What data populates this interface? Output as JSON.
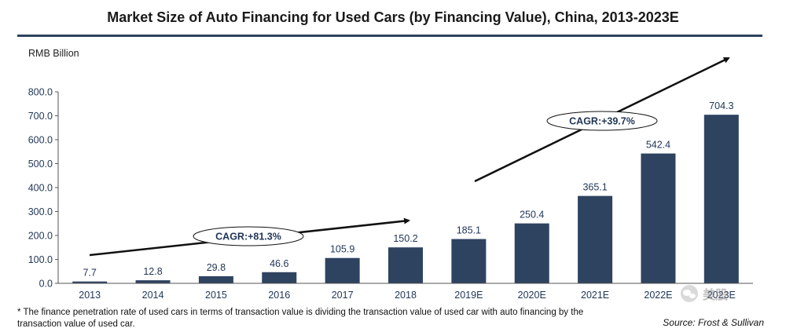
{
  "header": {
    "title": "Market Size of Auto Financing for Used Cars (by Financing Value), China, 2013-2023E",
    "unit": "RMB Billion"
  },
  "colors": {
    "bar": "#2e4360",
    "axis_text": "#1f3557",
    "rule": "#2e4360"
  },
  "chart_data": {
    "type": "bar",
    "title": "Market Size of Auto Financing for Used Cars (by Financing Value), China, 2013-2023E",
    "ylabel": "RMB Billion",
    "xlabel": "",
    "ylim": [
      0,
      800
    ],
    "yticks": [
      "0.0",
      "100.0",
      "200.0",
      "300.0",
      "400.0",
      "500.0",
      "600.0",
      "700.0",
      "800.0"
    ],
    "categories": [
      "2013",
      "2014",
      "2015",
      "2016",
      "2017",
      "2018",
      "2019E",
      "2020E",
      "2021E",
      "2022E",
      "2023E"
    ],
    "values": [
      7.7,
      12.8,
      29.8,
      46.6,
      105.9,
      150.2,
      185.1,
      250.4,
      365.1,
      542.4,
      704.3
    ],
    "labels": [
      "7.7",
      "12.8",
      "29.8",
      "46.6",
      "105.9",
      "150.2",
      "185.1",
      "250.4",
      "365.1",
      "542.4",
      "704.3"
    ],
    "grid": false,
    "annotations": [
      {
        "text": "CAGR:+81.3%"
      },
      {
        "text": "CAGR:+39.7%"
      }
    ]
  },
  "footer": {
    "footnote": "* The finance penetration rate of used cars in terms of transaction value is dividing the transaction value of used car with auto financing by the transaction value of used car.",
    "source": "Source: Frost & Sullivan"
  },
  "watermark": {
    "text": "美股",
    "icon": "wechat-icon"
  }
}
